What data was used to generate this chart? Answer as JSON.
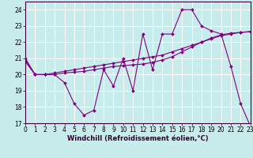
{
  "xlabel": "Windchill (Refroidissement éolien,°C)",
  "background_color": "#c8ecec",
  "line_color": "#800080",
  "grid_color": "#ffffff",
  "x_values": [
    0,
    1,
    2,
    3,
    4,
    5,
    6,
    7,
    8,
    9,
    10,
    11,
    12,
    13,
    14,
    15,
    16,
    17,
    18,
    19,
    20,
    21,
    22,
    23
  ],
  "series1": [
    21.0,
    20.0,
    20.0,
    20.0,
    19.5,
    18.2,
    17.5,
    17.8,
    20.3,
    19.3,
    21.0,
    19.0,
    22.5,
    20.3,
    22.5,
    22.5,
    24.0,
    24.0,
    23.0,
    22.7,
    22.5,
    20.5,
    18.2,
    16.8
  ],
  "series2": [
    20.9,
    20.0,
    20.0,
    20.1,
    20.2,
    20.3,
    20.4,
    20.5,
    20.6,
    20.7,
    20.8,
    20.9,
    21.0,
    21.1,
    21.2,
    21.4,
    21.6,
    21.8,
    22.0,
    22.2,
    22.4,
    22.5,
    22.6,
    22.65
  ],
  "series3": [
    20.8,
    20.0,
    20.0,
    20.0,
    20.1,
    20.15,
    20.2,
    20.3,
    20.4,
    20.5,
    20.55,
    20.6,
    20.65,
    20.75,
    20.9,
    21.1,
    21.4,
    21.7,
    22.0,
    22.25,
    22.45,
    22.55,
    22.6,
    22.65
  ],
  "ylim": [
    17,
    24.5
  ],
  "xlim": [
    0,
    23
  ],
  "yticks": [
    17,
    18,
    19,
    20,
    21,
    22,
    23,
    24
  ],
  "xticks": [
    0,
    1,
    2,
    3,
    4,
    5,
    6,
    7,
    8,
    9,
    10,
    11,
    12,
    13,
    14,
    15,
    16,
    17,
    18,
    19,
    20,
    21,
    22,
    23
  ],
  "xlabel_fontsize": 6,
  "tick_fontsize": 5.5,
  "linewidth": 0.8,
  "markersize": 2.0
}
